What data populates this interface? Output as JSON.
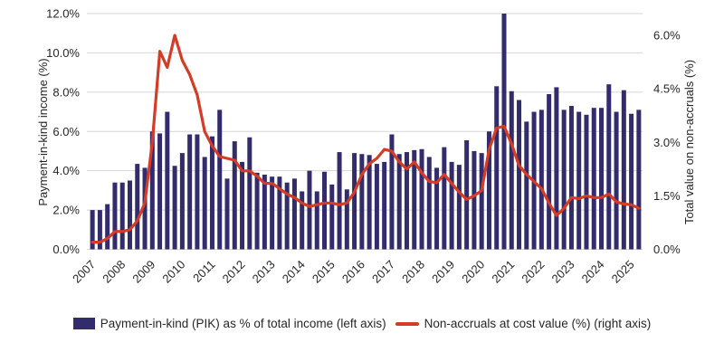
{
  "chart": {
    "left_axis": {
      "title": "Payment-in-kind income (%)",
      "tick_labels": [
        "0.0%",
        "2.0%",
        "4.0%",
        "6.0%",
        "8.0%",
        "10.0%",
        "12.0%"
      ]
    },
    "right_axis": {
      "title": "Total value on non-accruals (%)",
      "tick_labels": [
        "0.0%",
        "1.5%",
        "3.0%",
        "4.5%",
        "6.0%"
      ]
    },
    "x_axis": {
      "year_labels": [
        "2007",
        "2008",
        "2009",
        "2010",
        "2011",
        "2012",
        "2013",
        "2014",
        "2015",
        "2016",
        "2017",
        "2018",
        "2019",
        "2020",
        "2021",
        "2022",
        "2023",
        "2024",
        "2025"
      ]
    },
    "legend": {
      "bar_label": "Payment-in-kind (PIK) as % of total income (left axis)",
      "line_label": "Non-accruals at cost value (%) (right axis)"
    },
    "colors": {
      "bar": "#322b6c",
      "line": "#d63b25",
      "grid": "#d6d6d6",
      "text": "#262626"
    }
  },
  "chart_data": {
    "type": "combo-bar-line",
    "grid": true,
    "legend_position": "bottom",
    "left_ylim": [
      0,
      12
    ],
    "right_ylim": [
      0,
      6
    ],
    "left_tick_step": 2.0,
    "right_tick_step": 1.5,
    "categories": [
      "Q1 2007",
      "Q2 2007",
      "Q3 2007",
      "Q4 2007",
      "Q1 2008",
      "Q2 2008",
      "Q3 2008",
      "Q4 2008",
      "Q1 2009",
      "Q2 2009",
      "Q3 2009",
      "Q4 2009",
      "Q1 2010",
      "Q2 2010",
      "Q3 2010",
      "Q4 2010",
      "Q1 2011",
      "Q2 2011",
      "Q3 2011",
      "Q4 2011",
      "Q1 2012",
      "Q2 2012",
      "Q3 2012",
      "Q4 2012",
      "Q1 2013",
      "Q2 2013",
      "Q3 2013",
      "Q4 2013",
      "Q1 2014",
      "Q2 2014",
      "Q3 2014",
      "Q4 2014",
      "Q1 2015",
      "Q2 2015",
      "Q3 2015",
      "Q4 2015",
      "Q1 2016",
      "Q2 2016",
      "Q3 2016",
      "Q4 2016",
      "Q1 2017",
      "Q2 2017",
      "Q3 2017",
      "Q4 2017",
      "Q1 2018",
      "Q2 2018",
      "Q3 2018",
      "Q4 2018",
      "Q1 2019",
      "Q2 2019",
      "Q3 2019",
      "Q4 2019",
      "Q1 2020",
      "Q2 2020",
      "Q3 2020",
      "Q4 2020",
      "Q1 2021",
      "Q2 2021",
      "Q3 2021",
      "Q4 2021",
      "Q1 2022",
      "Q2 2022",
      "Q3 2022",
      "Q4 2022",
      "Q1 2023",
      "Q2 2023",
      "Q3 2023",
      "Q4 2023",
      "Q1 2024",
      "Q2 2024",
      "Q3 2024",
      "Q4 2024",
      "Q1 2025",
      "Q2 2025"
    ],
    "series": [
      {
        "name": "Payment-in-kind (PIK) as % of total income (left axis)",
        "type": "bar",
        "axis": "left",
        "color": "#322b6c",
        "values": [
          2.0,
          2.0,
          2.3,
          3.4,
          3.4,
          3.5,
          4.35,
          4.15,
          6.0,
          5.9,
          7.0,
          4.25,
          4.9,
          5.85,
          5.85,
          4.7,
          5.75,
          7.1,
          3.6,
          5.5,
          4.45,
          5.7,
          3.9,
          3.8,
          3.7,
          3.7,
          3.4,
          3.6,
          2.95,
          4.0,
          2.95,
          3.95,
          3.3,
          4.95,
          3.05,
          4.9,
          4.85,
          4.8,
          4.35,
          4.45,
          5.85,
          4.85,
          4.95,
          5.05,
          5.1,
          4.7,
          4.15,
          5.2,
          4.45,
          4.3,
          5.55,
          5.0,
          4.9,
          6.0,
          8.3,
          12.0,
          8.05,
          7.6,
          6.5,
          7.0,
          7.1,
          7.9,
          8.25,
          7.1,
          7.3,
          7.0,
          6.85,
          7.2,
          7.2,
          8.4,
          7.0,
          8.1,
          6.9,
          7.1
        ]
      },
      {
        "name": "Non-accruals at cost value (%) (right axis)",
        "type": "line",
        "axis": "right",
        "color": "#d63b25",
        "values": [
          0.2,
          0.2,
          0.3,
          0.5,
          0.5,
          0.55,
          0.8,
          1.3,
          3.0,
          5.55,
          5.1,
          6.0,
          5.3,
          4.9,
          4.33,
          3.3,
          2.9,
          2.6,
          2.55,
          2.5,
          2.2,
          2.2,
          2.05,
          1.85,
          1.85,
          1.7,
          1.55,
          1.45,
          1.3,
          1.2,
          1.25,
          1.3,
          1.3,
          1.25,
          1.3,
          1.6,
          2.1,
          2.4,
          2.55,
          2.8,
          2.75,
          2.45,
          2.25,
          2.45,
          2.15,
          1.9,
          1.87,
          2.1,
          1.85,
          1.6,
          1.4,
          1.5,
          1.65,
          2.8,
          3.4,
          3.45,
          2.95,
          2.35,
          2.1,
          1.9,
          1.7,
          1.3,
          0.95,
          1.15,
          1.45,
          1.42,
          1.5,
          1.45,
          1.45,
          1.55,
          1.33,
          1.27,
          1.25,
          1.15
        ]
      }
    ]
  }
}
